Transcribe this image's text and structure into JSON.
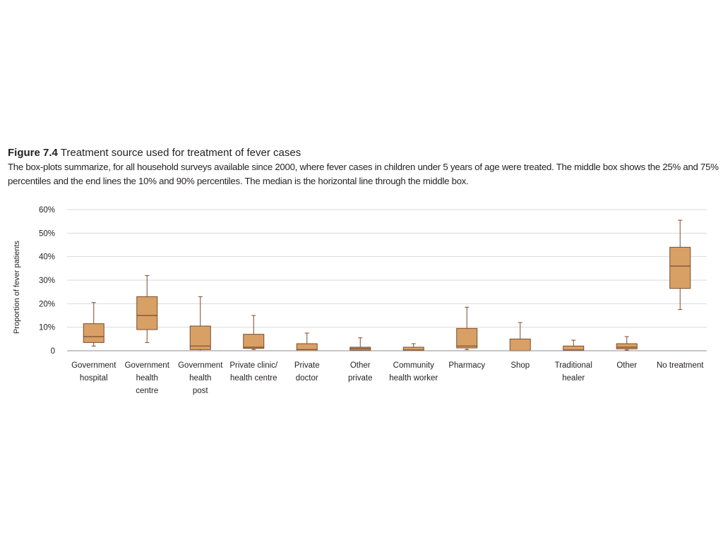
{
  "figure": {
    "label": "Figure 7.4",
    "title": "Treatment source used for treatment of fever cases",
    "description": "The box-plots summarize, for all household surveys available since 2000, where fever cases in children under 5 years of age were treated.  The middle box shows the 25% and 75% percentiles and the end lines the 10% and 90% percentiles.  The median is the horizontal line through the middle box."
  },
  "colors": {
    "box_fill": "#d9a066",
    "box_stroke": "#7a4a2a",
    "grid": "#d9d9d9",
    "axis": "#8c8c8c"
  },
  "chart_data": {
    "type": "boxplot",
    "ylabel": "Proportion of fever patients",
    "ylim": [
      0,
      60
    ],
    "yticks": [
      0,
      10,
      20,
      30,
      40,
      50,
      60
    ],
    "ytick_labels": [
      "0",
      "10%",
      "20%",
      "30%",
      "40%",
      "50%",
      "60%"
    ],
    "grid": true,
    "categories": [
      {
        "label": [
          "Government",
          "hospital"
        ],
        "p10": 2,
        "q1": 3.5,
        "median": 6,
        "q3": 11.5,
        "p90": 20.5
      },
      {
        "label": [
          "Government",
          "health",
          "centre"
        ],
        "p10": 3.5,
        "q1": 9,
        "median": 15,
        "q3": 23,
        "p90": 32
      },
      {
        "label": [
          "Government",
          "health",
          "post"
        ],
        "p10": 0,
        "q1": 0.5,
        "median": 2,
        "q3": 10.5,
        "p90": 23
      },
      {
        "label": [
          "Private clinic/",
          "health centre"
        ],
        "p10": 0.5,
        "q1": 1,
        "median": 1.5,
        "q3": 7,
        "p90": 15
      },
      {
        "label": [
          "Private",
          "doctor"
        ],
        "p10": 0,
        "q1": 0,
        "median": 0.5,
        "q3": 3,
        "p90": 7.5
      },
      {
        "label": [
          "Other",
          "private"
        ],
        "p10": 0,
        "q1": 0.3,
        "median": 1,
        "q3": 1.5,
        "p90": 5.5
      },
      {
        "label": [
          "Community",
          "health worker"
        ],
        "p10": 0,
        "q1": 0,
        "median": 0.3,
        "q3": 1.5,
        "p90": 3
      },
      {
        "label": [
          "Pharmacy"
        ],
        "p10": 0.5,
        "q1": 1.2,
        "median": 2,
        "q3": 9.5,
        "p90": 18.5
      },
      {
        "label": [
          "Shop"
        ],
        "p10": 0,
        "q1": 0,
        "median": 0,
        "q3": 5,
        "p90": 12
      },
      {
        "label": [
          "Traditional",
          "healer"
        ],
        "p10": 0,
        "q1": 0,
        "median": 0.3,
        "q3": 2,
        "p90": 4.5
      },
      {
        "label": [
          "Other"
        ],
        "p10": 0.3,
        "q1": 0.8,
        "median": 1.5,
        "q3": 3,
        "p90": 6
      },
      {
        "label": [
          "No treatment"
        ],
        "p10": 17.5,
        "q1": 26.5,
        "median": 36,
        "q3": 44,
        "p90": 55.5
      }
    ]
  }
}
